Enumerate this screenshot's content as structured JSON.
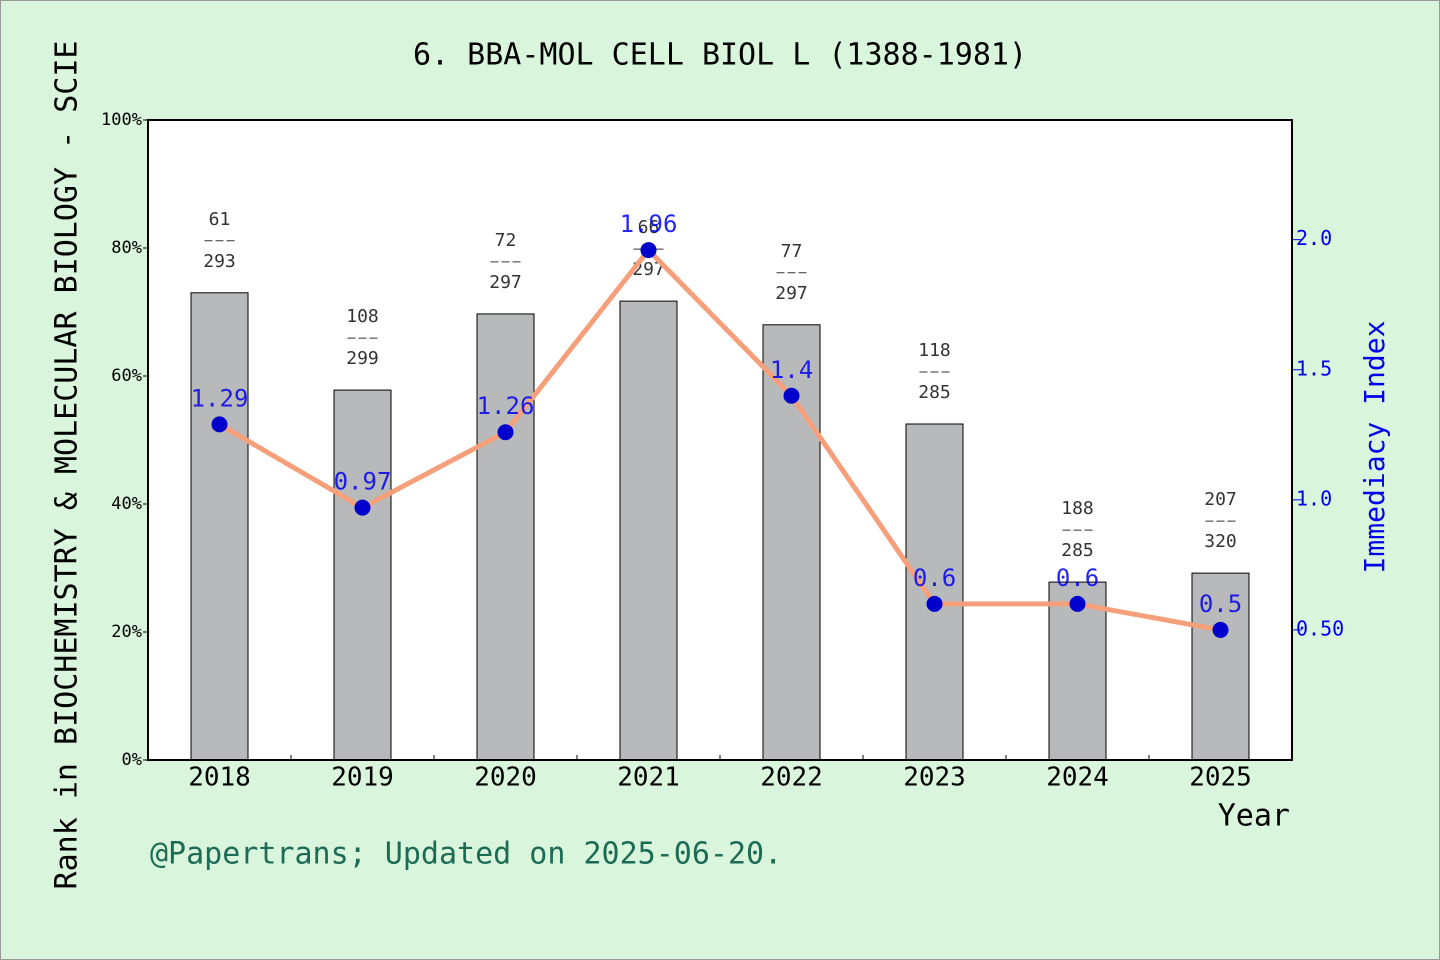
{
  "chart_data": {
    "type": "bar",
    "title": "6. BBA-MOL CELL BIOL L (1388-1981)",
    "x_label": "Year",
    "y_label": "Rank in BIOCHEMISTRY & MOLECULAR BIOLOGY - SCIE",
    "y2_label": "Immediacy Index",
    "footer": "@Papertrans; Updated on 2025-06-20.",
    "categories": [
      "2018",
      "2019",
      "2020",
      "2021",
      "2022",
      "2023",
      "2024",
      "2025"
    ],
    "series": [
      {
        "type": "bar",
        "color": "#b8b9bb",
        "values": [
          73.0,
          57.8,
          69.7,
          71.7,
          68.0,
          52.5,
          27.8,
          29.2
        ]
      },
      {
        "type": "line",
        "axis": "y2",
        "color": "#f5a07a",
        "marker_color": "#0000cc",
        "label_color": "#0000ee",
        "values": [
          1.29,
          0.97,
          1.26,
          1.96,
          1.4,
          0.6,
          0.6,
          0.5
        ]
      }
    ],
    "ranks": [
      61,
      108,
      72,
      66,
      77,
      118,
      188,
      207
    ],
    "totals": [
      293,
      299,
      297,
      297,
      297,
      285,
      285,
      320
    ],
    "ylim": [
      0,
      100
    ],
    "yticks": [
      {
        "value": 0,
        "label": "0%"
      },
      {
        "value": 20,
        "label": "20%"
      },
      {
        "value": 40,
        "label": "40%"
      },
      {
        "value": 60,
        "label": "60%"
      },
      {
        "value": 80,
        "label": "80%"
      },
      {
        "value": 100,
        "label": "100%"
      }
    ],
    "y2lim": [
      0,
      2.46
    ],
    "y2ticks": [
      {
        "value": 0.5,
        "label": "0.50"
      },
      {
        "value": 1.0,
        "label": "1.0"
      },
      1.5,
      {
        "value": 2.0,
        "label": "2.0"
      }
    ]
  }
}
